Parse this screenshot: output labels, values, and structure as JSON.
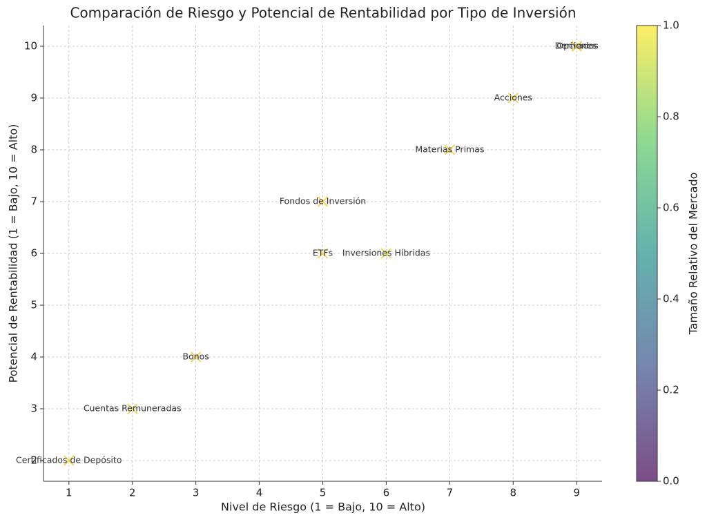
{
  "chart_data": {
    "type": "scatter",
    "title": "Comparación de Riesgo y Potencial de Rentabilidad por Tipo de Inversión",
    "x_label": "Nivel de Riesgo (1 = Bajo, 10 = Alto)",
    "y_label": "Potencial de Rentabilidad (1 = Bajo, 10 = Alto)",
    "labels": [
      "Certificados de Depósito",
      "Cuentas Remuneradas",
      "Bonos",
      "ETFs",
      "Inversiones Híbridas",
      "Fondos de Inversión",
      "Materias Primas",
      "Acciones",
      "Derivados",
      "Opciones"
    ],
    "x": [
      1,
      2,
      3,
      5,
      6,
      5,
      7,
      8,
      9,
      9
    ],
    "y": [
      2,
      3,
      4,
      6,
      6,
      7,
      8,
      9,
      10,
      10
    ],
    "marker": "x",
    "color": "#f2cf3a",
    "xlim": [
      0.6,
      9.4
    ],
    "xticks": [
      1,
      2,
      3,
      4,
      5,
      6,
      7,
      8,
      9
    ],
    "ylim": [
      1.6,
      10.4
    ],
    "yticks": [
      2,
      3,
      4,
      5,
      6,
      7,
      8,
      9,
      10
    ],
    "grid": true,
    "colorbar": {
      "label": "Tamaño Relativo del Mercado",
      "lim": [
        0,
        1
      ],
      "ticks": [
        {
          "value": 0,
          "label": "0.0"
        },
        0.2,
        0.4,
        0.6,
        0.8,
        {
          "value": 1,
          "label": "1.0"
        }
      ],
      "colormap": [
        "#440154",
        "#3b528b",
        "#21918c",
        "#5ec962",
        "#fde725"
      ]
    }
  }
}
